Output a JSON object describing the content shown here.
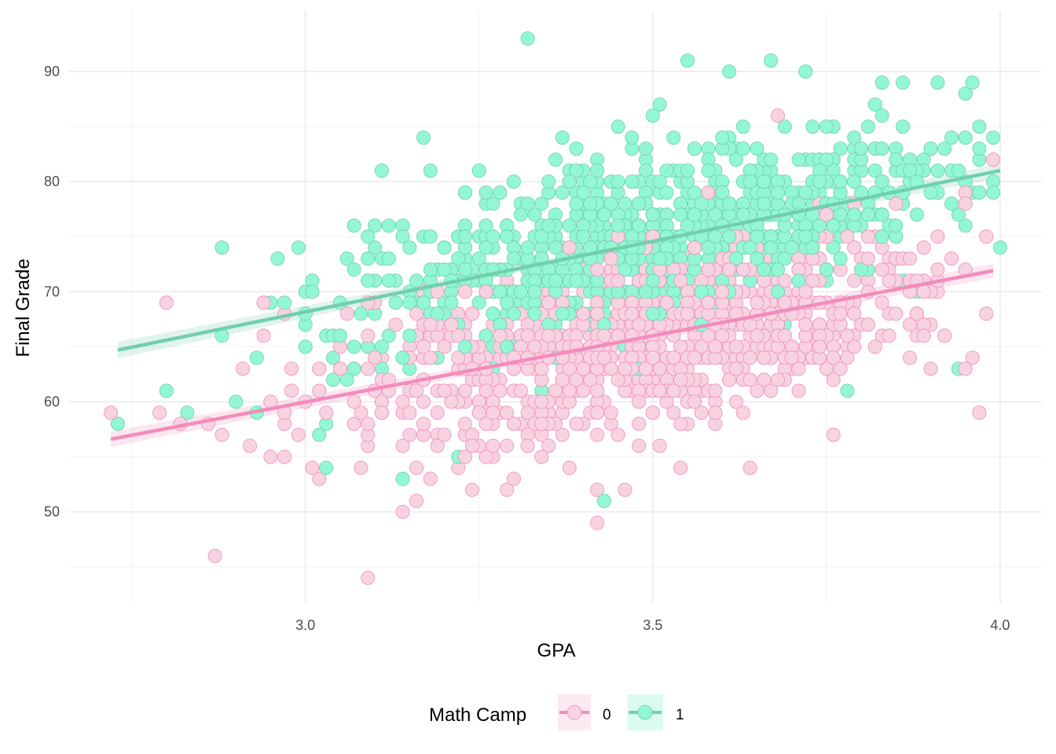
{
  "chart_data": {
    "type": "scatter",
    "title": "",
    "xlabel": "GPA",
    "ylabel": "Final Grade",
    "xlim": [
      2.66,
      4.06
    ],
    "ylim": [
      41.7,
      95.5
    ],
    "x_ticks": [
      3.0,
      3.5,
      4.0
    ],
    "x_tick_labels": [
      "3.0",
      "3.5",
      "4.0"
    ],
    "y_ticks": [
      50,
      60,
      70,
      80,
      90
    ],
    "y_tick_labels": [
      "50",
      "60",
      "70",
      "80",
      "90"
    ],
    "grid": true,
    "legend": {
      "title": "Math Camp",
      "position": "bottom",
      "labels": [
        "0",
        "1"
      ]
    },
    "series": [
      {
        "name": "0",
        "color": "#f38cbb",
        "fill": "#f7d3e2",
        "trend": {
          "x": [
            2.72,
            3.99
          ],
          "y": [
            56.6,
            71.9
          ],
          "ci_halfwidth": [
            0.7,
            0.35,
            0.65
          ]
        },
        "n_points": 950,
        "gpa_range": [
          2.72,
          3.99
        ],
        "noise_sd": 4.2,
        "points": [
          [
            2.72,
            59
          ],
          [
            2.8,
            69
          ],
          [
            2.79,
            59
          ],
          [
            2.82,
            58
          ],
          [
            2.87,
            46
          ],
          [
            3.09,
            44
          ],
          [
            2.95,
            55
          ],
          [
            2.97,
            55
          ],
          [
            2.94,
            69
          ],
          [
            3.42,
            49
          ],
          [
            3.14,
            50
          ],
          [
            3.42,
            52
          ],
          [
            3.54,
            54
          ],
          [
            3.64,
            54
          ],
          [
            3.99,
            82
          ],
          [
            3.68,
            86
          ],
          [
            3.97,
            59
          ],
          [
            3.95,
            63
          ],
          [
            3.76,
            57
          ],
          [
            3.02,
            53
          ]
        ]
      },
      {
        "name": "1",
        "color": "#72cfae",
        "fill": "#93f7d4",
        "trend": {
          "x": [
            2.73,
            4.0
          ],
          "y": [
            64.7,
            81.0
          ],
          "ci_halfwidth": [
            0.75,
            0.3,
            0.65
          ]
        },
        "n_points": 950,
        "gpa_range": [
          2.73,
          4.0
        ],
        "noise_sd": 4.2,
        "points": [
          [
            2.73,
            58
          ],
          [
            3.32,
            93
          ],
          [
            3.55,
            91
          ],
          [
            3.67,
            91
          ],
          [
            3.61,
            90
          ],
          [
            3.72,
            90
          ],
          [
            3.43,
            51
          ],
          [
            3.03,
            54
          ],
          [
            3.02,
            57
          ],
          [
            2.88,
            74
          ],
          [
            2.99,
            74
          ],
          [
            4.0,
            74
          ],
          [
            3.99,
            84
          ],
          [
            3.96,
            89
          ],
          [
            3.91,
            89
          ],
          [
            3.83,
            89
          ],
          [
            3.86,
            89
          ],
          [
            3.51,
            87
          ],
          [
            3.78,
            61
          ],
          [
            3.94,
            63
          ]
        ]
      }
    ]
  }
}
